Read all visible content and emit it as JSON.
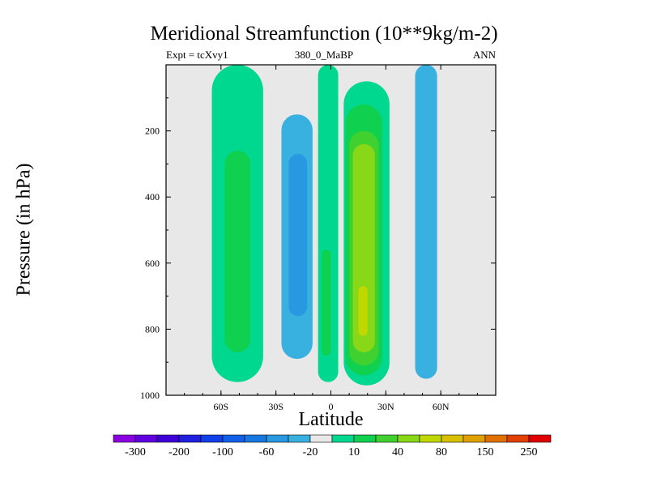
{
  "chart_data": {
    "type": "heatmap",
    "title": "Meridional Streamfunction (10**9kg/m-2)",
    "subtitle_left": "Expt = tcXvy1",
    "subtitle_center": "380_0_MaBP",
    "subtitle_right": "ANN",
    "xlabel": "Latitude",
    "ylabel": "Pressure (in hPa)",
    "xlim": [
      -90,
      90
    ],
    "ylim": [
      1000,
      0
    ],
    "x_ticks": [
      {
        "value": -60,
        "label": "60S"
      },
      {
        "value": -30,
        "label": "30S"
      },
      {
        "value": 0,
        "label": "0"
      },
      {
        "value": 30,
        "label": "30N"
      },
      {
        "value": 60,
        "label": "60N"
      }
    ],
    "y_ticks": [
      {
        "value": 200,
        "label": "200"
      },
      {
        "value": 400,
        "label": "400"
      },
      {
        "value": 600,
        "label": "600"
      },
      {
        "value": 800,
        "label": "800"
      },
      {
        "value": 1000,
        "label": "1000"
      }
    ],
    "colorbar": {
      "levels": [
        -300,
        -250,
        -200,
        -150,
        -100,
        -80,
        -60,
        -40,
        -20,
        -10,
        10,
        20,
        40,
        60,
        80,
        100,
        150,
        200,
        250,
        300
      ],
      "labels": [
        "-300",
        "-200",
        "-100",
        "-60",
        "-20",
        "10",
        "40",
        "80",
        "150",
        "250"
      ],
      "colors": [
        "#8b00e0",
        "#6000e0",
        "#4000d8",
        "#2020e0",
        "#1040e8",
        "#1060e8",
        "#1878e0",
        "#2898e0",
        "#38b0e0",
        "#e8e8e8",
        "#00d890",
        "#10d050",
        "#40d030",
        "#88d818",
        "#c0d800",
        "#d8c000",
        "#e0a000",
        "#e07000",
        "#e04000",
        "#e00000"
      ]
    },
    "regions": [
      {
        "label": "SH high-latitude positive cell (lat -65 to -37, p 0 to 960)",
        "lat": [
          -65,
          -37
        ],
        "p": [
          0,
          960
        ],
        "value": 10
      },
      {
        "label": "SH high-latitude core (lat -58 to -44, p 260 to 870)",
        "lat": [
          -58,
          -44
        ],
        "p": [
          260,
          870
        ],
        "value": 20
      },
      {
        "label": "SH tropical negative cell (lat -31 to -6, p 60 to 980)",
        "lat": [
          -31,
          -6
        ],
        "p": [
          60,
          980
        ],
        "value": -10
      },
      {
        "label": "SH tropical core 1 (lat -27 to -10, p 150 to 890)",
        "lat": [
          -27,
          -10
        ],
        "p": [
          150,
          890
        ],
        "value": -20
      },
      {
        "label": "SH tropical core 2 (lat -23 to -13, p 270 to 760)",
        "lat": [
          -23,
          -13
        ],
        "p": [
          270,
          760
        ],
        "value": -40
      },
      {
        "label": "equatorial band (lat -7 to 4, p 0 to 960)",
        "lat": [
          -7,
          4
        ],
        "p": [
          0,
          960
        ],
        "value": 10
      },
      {
        "label": "equatorial core (lat -5 to 0, p 560 to 880)",
        "lat": [
          -5,
          0
        ],
        "p": [
          560,
          880
        ],
        "value": 20
      },
      {
        "label": "NH tropical positive cell (lat 7 to 32, p 50 to 970)",
        "lat": [
          7,
          32
        ],
        "p": [
          50,
          970
        ],
        "value": 10
      },
      {
        "label": "NH tropical core 1 (lat 8 to 28, p 120 to 940)",
        "lat": [
          8,
          28
        ],
        "p": [
          120,
          940
        ],
        "value": 20
      },
      {
        "label": "NH tropical core 2 (lat 10 to 26, p 200 to 910)",
        "lat": [
          10,
          26
        ],
        "p": [
          200,
          910
        ],
        "value": 40
      },
      {
        "label": "NH tropical core 3 (lat 12 to 24, p 240 to 870)",
        "lat": [
          12,
          24
        ],
        "p": [
          240,
          870
        ],
        "value": 60
      },
      {
        "label": "NH tropical maximum (lat 15 to 20, p 670 to 820)",
        "lat": [
          15,
          20
        ],
        "p": [
          670,
          820
        ],
        "value": 80
      },
      {
        "label": "NH mid-latitude negative cell (lat 33 to 58, p 0 to 960)",
        "lat": [
          33,
          58
        ],
        "p": [
          0,
          960
        ],
        "value": -10
      },
      {
        "label": "NH mid-latitude core (lat 46 to 58, p 0 to 950)",
        "lat": [
          46,
          58
        ],
        "p": [
          0,
          950
        ],
        "value": -20
      }
    ]
  }
}
